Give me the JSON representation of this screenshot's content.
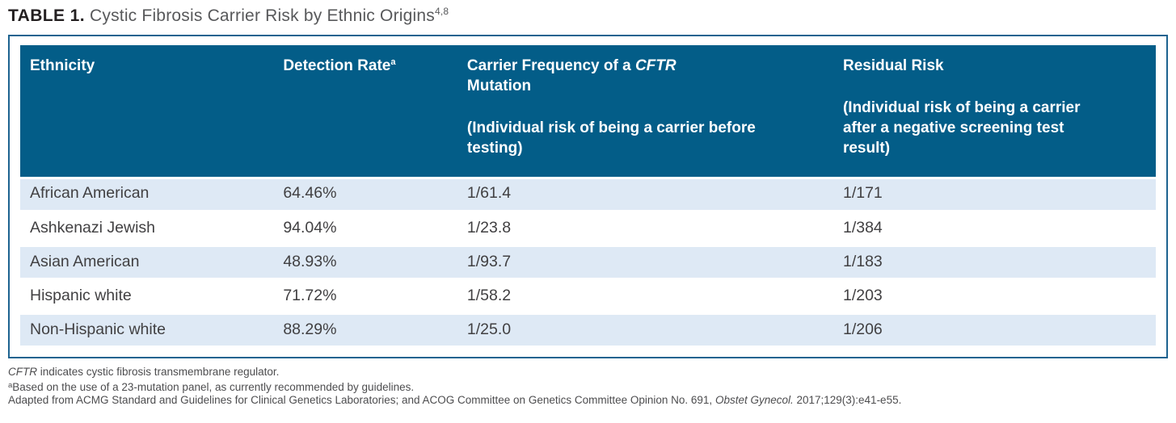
{
  "title": {
    "label": "TABLE 1.",
    "text": " Cystic Fibrosis Carrier Risk by Ethnic Origins",
    "reference": "4,8"
  },
  "table": {
    "headers": [
      {
        "main": "Ethnicity"
      },
      {
        "main": "Detection Rate",
        "sup": "a"
      },
      {
        "main_pre": "Carrier Frequency of a ",
        "main_italic": "CFTR",
        "main_line2": "Mutation",
        "sub": "(Individual risk of being a carrier before testing)"
      },
      {
        "main": "Residual Risk",
        "sub": "(Individual risk of being a carrier after a negative screening test result)"
      }
    ],
    "rows": [
      [
        "African American",
        "64.46%",
        "1/61.4",
        "1/171"
      ],
      [
        "Ashkenazi Jewish",
        "94.04%",
        "1/23.8",
        "1/384"
      ],
      [
        "Asian American",
        "48.93%",
        "1/93.7",
        "1/183"
      ],
      [
        "Hispanic white",
        "71.72%",
        "1/58.2",
        "1/203"
      ],
      [
        "Non-Hispanic white",
        "88.29%",
        "1/25.0",
        "1/206"
      ]
    ]
  },
  "footnotes": [
    {
      "italic": "CFTR",
      "text": " indicates cystic fibrosis transmembrane regulator."
    },
    {
      "sup": "a",
      "text": "Based on the use of a 23-mutation panel, as currently recommended by guidelines."
    },
    {
      "text": "Adapted from ACMG Standard and Guidelines for Clinical Genetics Laboratories; and ACOG Committee on Genetics Committee Opinion No. 691, ",
      "italic": "Obstet Gynecol.",
      "text_after": " 2017;129(3):e41-e55."
    }
  ],
  "colors": {
    "header_bg": "#035D88",
    "row_stripe": "#DEE9F5",
    "table_border": "#1D6390",
    "title_label": "#231F20",
    "title_text": "#58595B",
    "body_text": "#414042",
    "footnote_text": "#4D4D4F",
    "header_text": "#FFFFFF"
  }
}
